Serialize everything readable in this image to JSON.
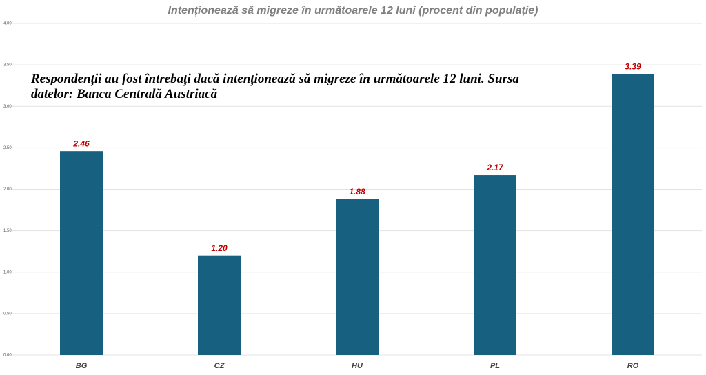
{
  "chart_data": {
    "type": "bar",
    "title": "Intenționează să migreze în următoarele 12 luni (procent din populație)",
    "annotation": "Respondenții au fost întrebați dacă intenționează să migreze în următoarele 12 luni. Sursa datelor: Banca Centrală Austriacă",
    "categories": [
      "BG",
      "CZ",
      "HU",
      "PL",
      "RO"
    ],
    "values": [
      2.46,
      1.2,
      1.88,
      2.17,
      3.39
    ],
    "value_labels": [
      "2.46",
      "1.20",
      "1.88",
      "2.17",
      "3.39"
    ],
    "color": "#17607f",
    "value_label_color": "#c00000",
    "ylim": [
      0,
      4
    ],
    "yticks": [
      {
        "value": 0,
        "label": "0.00"
      },
      {
        "value": 0.5,
        "label": "0.50"
      },
      {
        "value": 1,
        "label": "1.00"
      },
      {
        "value": 1.5,
        "label": "1.50"
      },
      {
        "value": 2,
        "label": "2.00"
      },
      {
        "value": 2.5,
        "label": "2.50"
      },
      {
        "value": 3,
        "label": "3.00"
      },
      {
        "value": 3.5,
        "label": "3.50"
      },
      {
        "value": 4,
        "label": "4.00"
      }
    ],
    "grid": true
  }
}
